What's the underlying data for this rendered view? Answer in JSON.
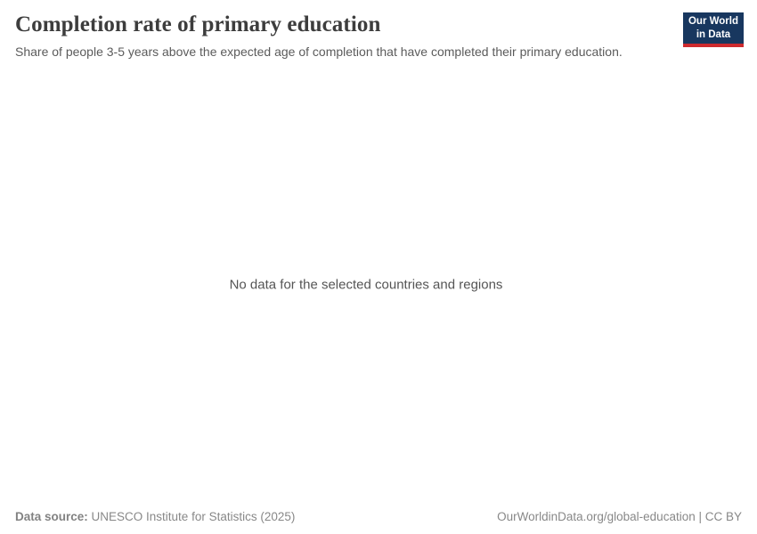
{
  "header": {
    "title": "Completion rate of primary education",
    "subtitle": "Share of people 3-5 years above the expected age of completion that have completed their primary education."
  },
  "logo": {
    "line1": "Our World",
    "line2": "in Data",
    "bg_color": "#18375f",
    "accent_color": "#cd2a2e"
  },
  "chart_data": {
    "type": "line",
    "title": "Completion rate of primary education",
    "subtitle": "Share of people 3-5 years above the expected age of completion that have completed their primary education.",
    "series": [],
    "annotations": [
      "No data for the selected countries and regions"
    ],
    "no_data_message": "No data for the selected countries and regions"
  },
  "footer": {
    "source_label": "Data source:",
    "source_value": " UNESCO Institute for Statistics (2025)",
    "link_text": "OurWorldinData.org/global-education | CC BY"
  },
  "colors": {
    "background": "#ffffff",
    "title_text": "#3d3d3d",
    "subtitle_text": "#5b5b5b",
    "footer_text": "#888888",
    "logo_navy": "#18375f",
    "logo_red": "#cd2a2e"
  }
}
